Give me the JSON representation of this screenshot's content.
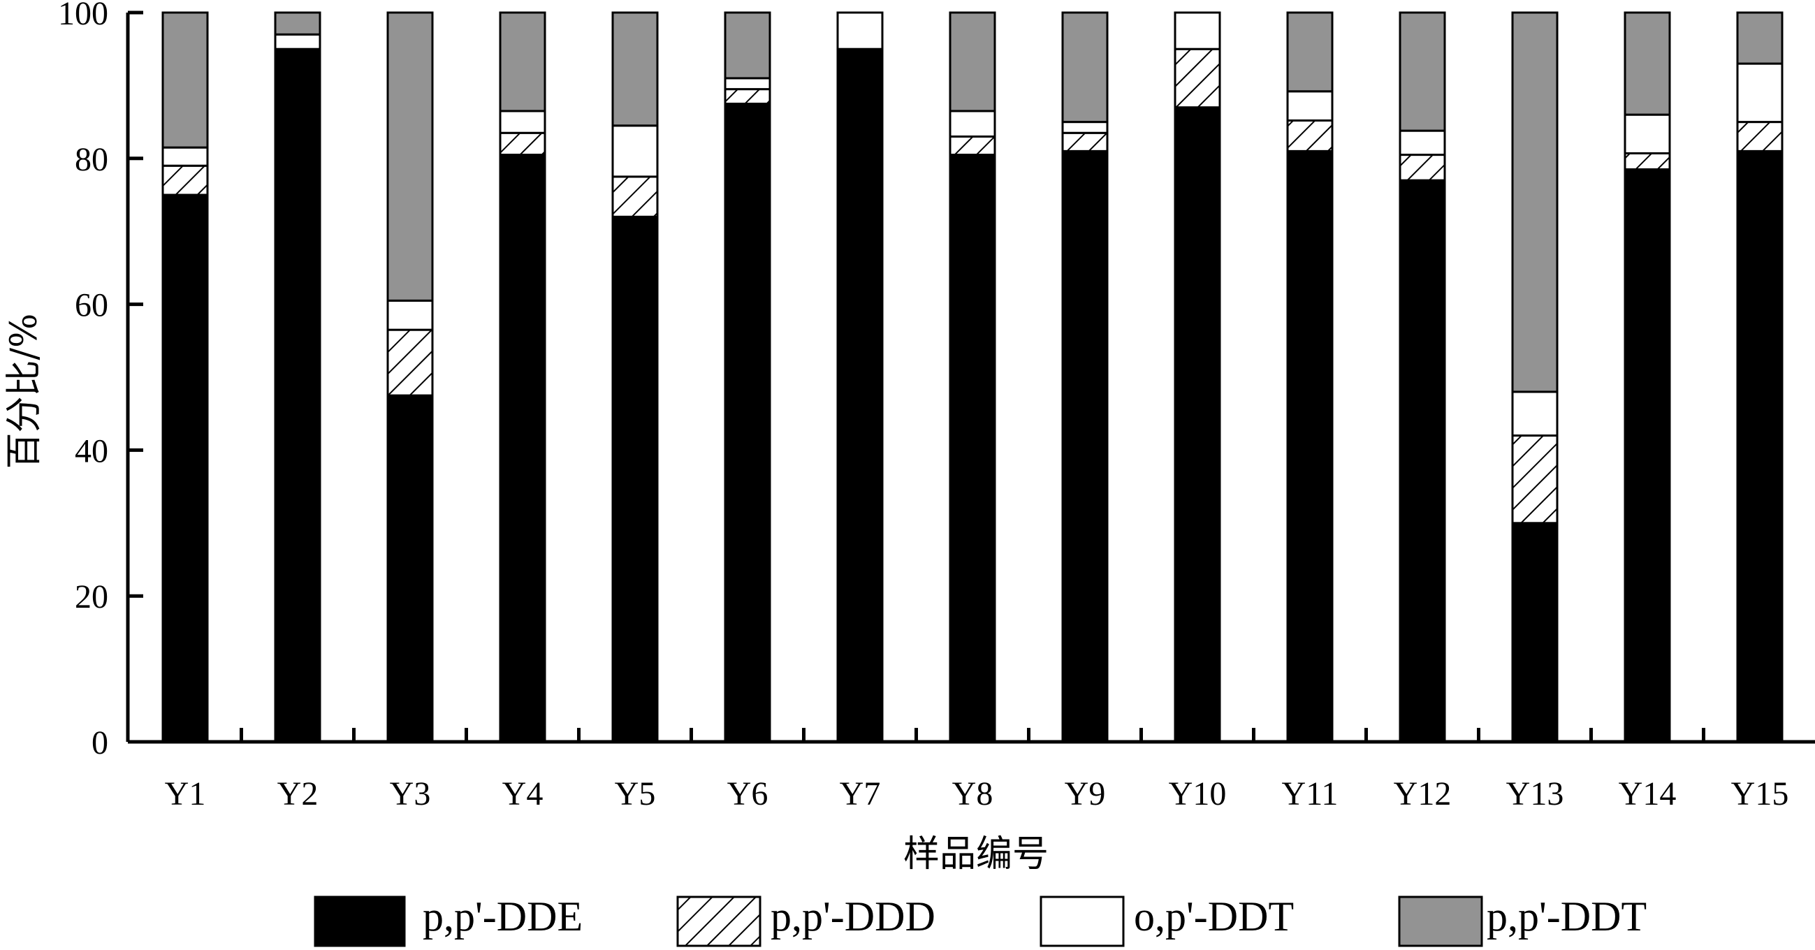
{
  "chart_data": {
    "type": "bar",
    "stacked": true,
    "xlabel": "样品编号",
    "ylabel": "百分比/%",
    "ylim": [
      0,
      100
    ],
    "yticks": [
      0,
      20,
      40,
      60,
      80,
      100
    ],
    "categories": [
      "Y1",
      "Y2",
      "Y3",
      "Y4",
      "Y5",
      "Y6",
      "Y7",
      "Y8",
      "Y9",
      "Y10",
      "Y11",
      "Y12",
      "Y13",
      "Y14",
      "Y15"
    ],
    "series": [
      {
        "name": "p,p'-DDE",
        "pattern": "solid-black",
        "color": "#000000",
        "values": [
          75,
          95,
          47.5,
          80.5,
          72,
          87.5,
          95,
          80.5,
          81,
          87,
          81,
          77,
          30,
          78.5,
          81
        ]
      },
      {
        "name": "p,p'-DDD",
        "pattern": "hatch",
        "color": "#000000",
        "values": [
          4,
          0,
          9,
          3,
          5.5,
          2,
          0,
          2.5,
          2.5,
          8,
          4.2,
          3.5,
          12,
          2.2,
          4
        ]
      },
      {
        "name": "o,p'-DDT",
        "pattern": "white",
        "color": "#ffffff",
        "values": [
          2.5,
          2,
          4,
          3,
          7,
          1.5,
          5,
          3.5,
          1.5,
          5,
          4,
          3.3,
          6,
          5.3,
          8
        ]
      },
      {
        "name": "p,p'-DDT",
        "pattern": "gray",
        "color": "#939393",
        "values": [
          18.5,
          3,
          39.5,
          13.5,
          15.5,
          9,
          0,
          13.5,
          15,
          0,
          10.8,
          16.2,
          52,
          14,
          7
        ]
      }
    ],
    "legend_position": "bottom",
    "grid": false
  }
}
